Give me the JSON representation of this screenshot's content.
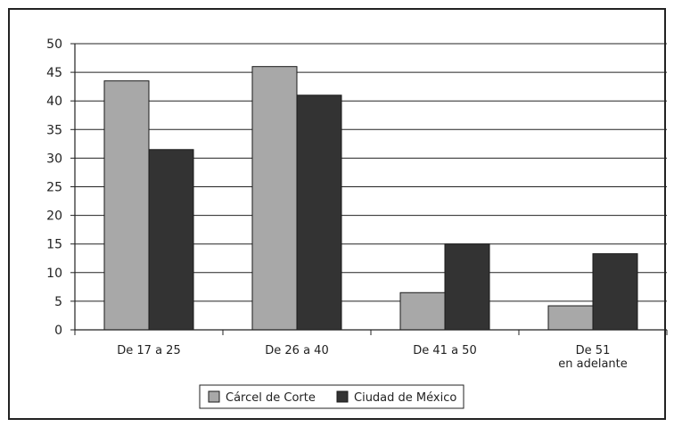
{
  "chart_data": {
    "type": "bar",
    "title": "",
    "xlabel": "",
    "ylabel": "",
    "ylim": [
      0,
      50
    ],
    "yticks": [
      0,
      5,
      10,
      15,
      20,
      25,
      30,
      35,
      40,
      45,
      50
    ],
    "grid": true,
    "legend_position": "bottom",
    "categories": [
      [
        "De 17 a 25"
      ],
      [
        "De 26 a 40"
      ],
      [
        "De 41 a 50"
      ],
      [
        "De 51",
        "en adelante"
      ]
    ],
    "series": [
      {
        "name": "Cárcel de Corte",
        "color": "#a8a8a8",
        "values": [
          43.5,
          46,
          6.5,
          4.2
        ]
      },
      {
        "name": "Ciudad de México",
        "color": "#333333",
        "values": [
          31.5,
          41,
          15,
          13.3
        ]
      }
    ]
  }
}
